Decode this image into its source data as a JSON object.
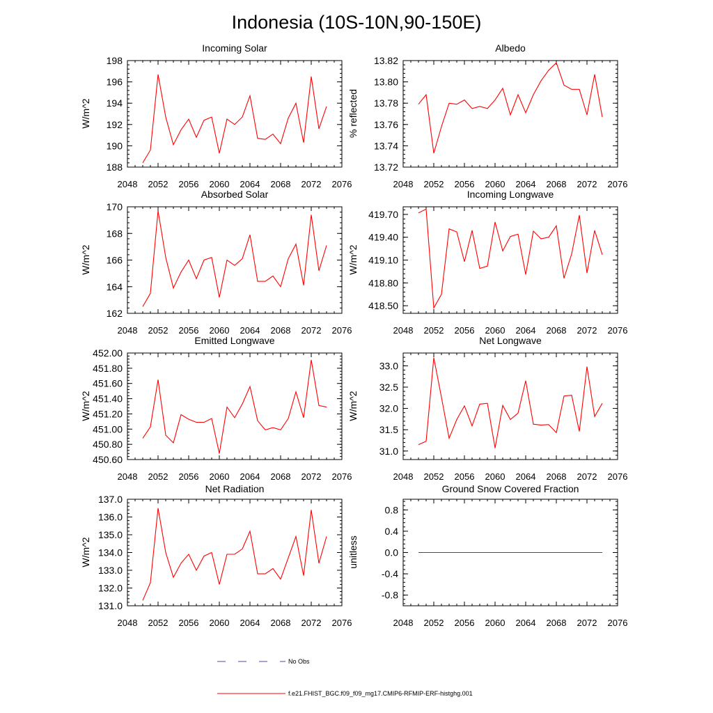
{
  "figure": {
    "title": "Indonesia (10S-10N,90-150E)",
    "legend": [
      {
        "label": "No Obs",
        "style": "dashed",
        "color": "#4a4ab0"
      },
      {
        "label": "f.e21.FHIST_BGC.f09_f09_mg17.CMIP6-RFMIP-ERF-histghg.001",
        "style": "solid",
        "color": "#ff0000"
      }
    ]
  },
  "chart_data": [
    {
      "type": "line",
      "title": "Incoming Solar",
      "ylabel": "W/m^2",
      "xlim": [
        2048,
        2076
      ],
      "xticks": [
        "2048",
        "2052",
        "2056",
        "2060",
        "2064",
        "2068",
        "2072",
        "2076"
      ],
      "ylim": [
        188,
        198
      ],
      "yticks": [
        "188",
        "190",
        "192",
        "194",
        "196",
        "198"
      ],
      "x": [
        2050,
        2051,
        2052,
        2053,
        2054,
        2055,
        2056,
        2057,
        2058,
        2059,
        2060,
        2061,
        2062,
        2063,
        2064,
        2065,
        2066,
        2067,
        2068,
        2069,
        2070,
        2071,
        2072,
        2073,
        2074
      ],
      "series": [
        {
          "name": "f.e21.FHIST_BGC.f09_f09_mg17.CMIP6-RFMIP-ERF-histghg.001",
          "color": "#ff0000",
          "values": [
            188.4,
            189.6,
            196.7,
            192.7,
            190.1,
            191.5,
            192.5,
            190.8,
            192.4,
            192.7,
            189.3,
            192.5,
            192.0,
            192.7,
            194.7,
            190.7,
            190.6,
            191.1,
            190.2,
            192.6,
            194.0,
            190.3,
            196.5,
            191.6,
            193.7
          ]
        }
      ]
    },
    {
      "type": "line",
      "title": "Albedo",
      "ylabel": "% reflected",
      "xlim": [
        2048,
        2076
      ],
      "xticks": [
        "2048",
        "2052",
        "2056",
        "2060",
        "2064",
        "2068",
        "2072",
        "2076"
      ],
      "ylim": [
        13.72,
        13.82
      ],
      "yticks": [
        "13.72",
        "13.74",
        "13.76",
        "13.78",
        "13.80",
        "13.82"
      ],
      "x": [
        2050,
        2051,
        2052,
        2053,
        2054,
        2055,
        2056,
        2057,
        2058,
        2059,
        2060,
        2061,
        2062,
        2063,
        2064,
        2065,
        2066,
        2067,
        2068,
        2069,
        2070,
        2071,
        2072,
        2073,
        2074
      ],
      "series": [
        {
          "name": "f.e21.FHIST_BGC.f09_f09_mg17.CMIP6-RFMIP-ERF-histghg.001",
          "color": "#ff0000",
          "values": [
            13.779,
            13.788,
            13.733,
            13.758,
            13.78,
            13.779,
            13.783,
            13.775,
            13.777,
            13.775,
            13.783,
            13.794,
            13.769,
            13.788,
            13.771,
            13.788,
            13.801,
            13.811,
            13.818,
            13.797,
            13.793,
            13.793,
            13.769,
            13.807,
            13.767
          ]
        }
      ]
    },
    {
      "type": "line",
      "title": "Absorbed Solar",
      "ylabel": "W/m^2",
      "xlim": [
        2048,
        2076
      ],
      "xticks": [
        "2048",
        "2052",
        "2056",
        "2060",
        "2064",
        "2068",
        "2072",
        "2076"
      ],
      "ylim": [
        162,
        170
      ],
      "yticks": [
        "162",
        "164",
        "166",
        "168",
        "170"
      ],
      "x": [
        2050,
        2051,
        2052,
        2053,
        2054,
        2055,
        2056,
        2057,
        2058,
        2059,
        2060,
        2061,
        2062,
        2063,
        2064,
        2065,
        2066,
        2067,
        2068,
        2069,
        2070,
        2071,
        2072,
        2073,
        2074
      ],
      "series": [
        {
          "name": "f.e21.FHIST_BGC.f09_f09_mg17.CMIP6-RFMIP-ERF-histghg.001",
          "color": "#ff0000",
          "values": [
            162.5,
            163.5,
            169.7,
            166.2,
            163.9,
            165.1,
            166.0,
            164.6,
            166.0,
            166.2,
            163.2,
            166.0,
            165.6,
            166.1,
            167.9,
            164.4,
            164.4,
            164.8,
            164.0,
            166.1,
            167.2,
            164.1,
            169.4,
            165.2,
            167.1
          ]
        }
      ]
    },
    {
      "type": "line",
      "title": "Incoming Longwave",
      "ylabel": "W/m^2",
      "xlim": [
        2048,
        2076
      ],
      "xticks": [
        "2048",
        "2052",
        "2056",
        "2060",
        "2064",
        "2068",
        "2072",
        "2076"
      ],
      "ylim": [
        418.4,
        419.8
      ],
      "yticks": [
        "418.50",
        "418.80",
        "419.10",
        "419.40",
        "419.70"
      ],
      "x": [
        2050,
        2051,
        2052,
        2053,
        2054,
        2055,
        2056,
        2057,
        2058,
        2059,
        2060,
        2061,
        2062,
        2063,
        2064,
        2065,
        2066,
        2067,
        2068,
        2069,
        2070,
        2071,
        2072,
        2073,
        2074
      ],
      "series": [
        {
          "name": "f.e21.FHIST_BGC.f09_f09_mg17.CMIP6-RFMIP-ERF-histghg.001",
          "color": "#ff0000",
          "values": [
            419.72,
            419.77,
            418.47,
            418.65,
            419.51,
            419.47,
            419.08,
            419.49,
            418.99,
            419.02,
            419.6,
            419.22,
            419.41,
            419.44,
            418.91,
            419.48,
            419.38,
            419.4,
            419.55,
            418.86,
            419.18,
            419.69,
            418.93,
            419.49,
            419.17
          ]
        }
      ]
    },
    {
      "type": "line",
      "title": "Emitted Longwave",
      "ylabel": "W/m^2",
      "xlim": [
        2048,
        2076
      ],
      "xticks": [
        "2048",
        "2052",
        "2056",
        "2060",
        "2064",
        "2068",
        "2072",
        "2076"
      ],
      "ylim": [
        450.6,
        452.0
      ],
      "yticks": [
        "450.60",
        "450.80",
        "451.00",
        "451.20",
        "451.40",
        "451.60",
        "451.80",
        "452.00"
      ],
      "x": [
        2050,
        2051,
        2052,
        2053,
        2054,
        2055,
        2056,
        2057,
        2058,
        2059,
        2060,
        2061,
        2062,
        2063,
        2064,
        2065,
        2066,
        2067,
        2068,
        2069,
        2070,
        2071,
        2072,
        2073,
        2074
      ],
      "series": [
        {
          "name": "f.e21.FHIST_BGC.f09_f09_mg17.CMIP6-RFMIP-ERF-histghg.001",
          "color": "#ff0000",
          "values": [
            450.88,
            451.03,
            451.65,
            450.92,
            450.82,
            451.19,
            451.13,
            451.09,
            451.09,
            451.14,
            450.68,
            451.29,
            451.15,
            451.33,
            451.56,
            451.11,
            450.99,
            451.02,
            450.99,
            451.14,
            451.49,
            451.15,
            451.91,
            451.31,
            451.29
          ]
        }
      ]
    },
    {
      "type": "line",
      "title": "Net Longwave",
      "ylabel": "W/m^2",
      "xlim": [
        2048,
        2076
      ],
      "xticks": [
        "2048",
        "2052",
        "2056",
        "2060",
        "2064",
        "2068",
        "2072",
        "2076"
      ],
      "ylim": [
        30.8,
        33.3
      ],
      "yticks": [
        "31.0",
        "31.5",
        "32.0",
        "32.5",
        "33.0"
      ],
      "x": [
        2050,
        2051,
        2052,
        2053,
        2054,
        2055,
        2056,
        2057,
        2058,
        2059,
        2060,
        2061,
        2062,
        2063,
        2064,
        2065,
        2066,
        2067,
        2068,
        2069,
        2070,
        2071,
        2072,
        2073,
        2074
      ],
      "series": [
        {
          "name": "f.e21.FHIST_BGC.f09_f09_mg17.CMIP6-RFMIP-ERF-histghg.001",
          "color": "#ff0000",
          "values": [
            31.15,
            31.23,
            33.19,
            32.26,
            31.3,
            31.74,
            32.06,
            31.59,
            32.1,
            32.12,
            31.07,
            32.07,
            31.74,
            31.89,
            32.65,
            31.63,
            31.61,
            31.62,
            31.43,
            32.29,
            32.31,
            31.46,
            32.98,
            31.81,
            32.12
          ]
        }
      ]
    },
    {
      "type": "line",
      "title": "Net Radiation",
      "ylabel": "W/m^2",
      "xlim": [
        2048,
        2076
      ],
      "xticks": [
        "2048",
        "2052",
        "2056",
        "2060",
        "2064",
        "2068",
        "2072",
        "2076"
      ],
      "ylim": [
        131.0,
        137.0
      ],
      "yticks": [
        "131.0",
        "132.0",
        "133.0",
        "134.0",
        "135.0",
        "136.0",
        "137.0"
      ],
      "x": [
        2050,
        2051,
        2052,
        2053,
        2054,
        2055,
        2056,
        2057,
        2058,
        2059,
        2060,
        2061,
        2062,
        2063,
        2064,
        2065,
        2066,
        2067,
        2068,
        2069,
        2070,
        2071,
        2072,
        2073,
        2074
      ],
      "series": [
        {
          "name": "f.e21.FHIST_BGC.f09_f09_mg17.CMIP6-RFMIP-ERF-histghg.001",
          "color": "#ff0000",
          "values": [
            131.3,
            132.3,
            136.5,
            134.0,
            132.6,
            133.4,
            133.9,
            133.0,
            133.8,
            134.0,
            132.2,
            133.9,
            133.9,
            134.2,
            135.2,
            132.8,
            132.8,
            133.1,
            132.5,
            133.7,
            134.9,
            132.7,
            136.4,
            133.4,
            134.9
          ]
        }
      ]
    },
    {
      "type": "line",
      "title": "Ground Snow Covered Fraction",
      "ylabel": "unitless",
      "xlim": [
        2048,
        2076
      ],
      "xticks": [
        "2048",
        "2052",
        "2056",
        "2060",
        "2064",
        "2068",
        "2072",
        "2076"
      ],
      "ylim": [
        -1.0,
        1.0
      ],
      "yticks": [
        "-0.8",
        "-0.4",
        "0.0",
        "0.4",
        "0.8"
      ],
      "x": [
        2050,
        2051,
        2052,
        2053,
        2054,
        2055,
        2056,
        2057,
        2058,
        2059,
        2060,
        2061,
        2062,
        2063,
        2064,
        2065,
        2066,
        2067,
        2068,
        2069,
        2070,
        2071,
        2072,
        2073,
        2074
      ],
      "series": [
        {
          "name": "f.e21.FHIST_BGC.f09_f09_mg17.CMIP6-RFMIP-ERF-histghg.001",
          "color": "#ff0000",
          "values": [
            0,
            0,
            0,
            0,
            0,
            0,
            0,
            0,
            0,
            0,
            0,
            0,
            0,
            0,
            0,
            0,
            0,
            0,
            0,
            0,
            0,
            0,
            0,
            0,
            0
          ]
        }
      ]
    }
  ]
}
